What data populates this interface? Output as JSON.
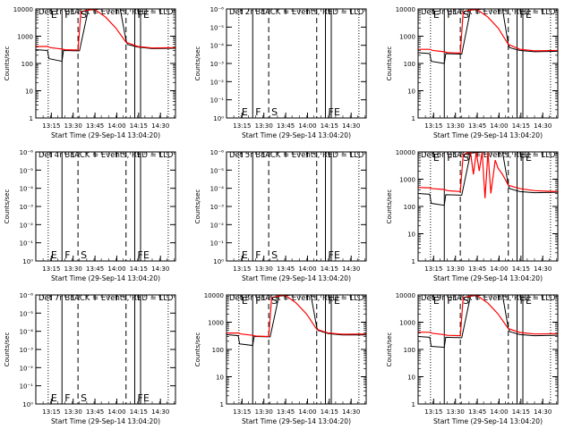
{
  "chart_data": {
    "type": "line",
    "layout": "3x3 grid",
    "ylabel": "Counts/sec",
    "xlabel": "Start Time (29-Sep-14 13:04:20)",
    "x_ticks": [
      "13:15",
      "13:30",
      "13:45",
      "14:00",
      "14:15",
      "14:30"
    ],
    "x_tick_minutes": [
      10.67,
      25.67,
      40.67,
      55.67,
      70.67,
      85.67
    ],
    "xlim_minutes": [
      0,
      96
    ],
    "ylim": [
      1,
      10000
    ],
    "y_scale": "log",
    "y_ticks_real": [
      "1",
      "10",
      "100",
      "1000",
      "10000"
    ],
    "y_ticks_empty": [
      "10⁰",
      "10⁻¹",
      "10⁻²",
      "10⁻³",
      "10⁻⁴",
      "10⁻⁵",
      "10⁻⁶"
    ],
    "series_colors": {
      "events": "#000000",
      "lld": "#ff0000"
    },
    "markers": [
      {
        "minutes": 8.5,
        "style": "dotted",
        "label": "E"
      },
      {
        "minutes": 18,
        "style": "solid",
        "label": "F"
      },
      {
        "minutes": 29,
        "style": "dashed",
        "label": "S"
      },
      {
        "minutes": 62,
        "style": "dashed",
        "label": ""
      },
      {
        "minutes": 68,
        "style": "solid",
        "label": "F"
      },
      {
        "minutes": 72,
        "style": "solid",
        "label": "E"
      },
      {
        "minutes": 91,
        "style": "dotted",
        "label": ""
      }
    ],
    "panels": [
      {
        "title": "Det 1r BLACK = Events, RED = LLD",
        "empty": false,
        "events_x": [
          0,
          8,
          9,
          18,
          19,
          29,
          30,
          36,
          45,
          50,
          58,
          62,
          63,
          70,
          80,
          96
        ],
        "events_y": [
          320,
          300,
          150,
          120,
          300,
          290,
          290,
          9000,
          10000,
          10000,
          10000,
          700,
          500,
          400,
          350,
          360
        ],
        "lld_x": [
          0,
          8,
          10,
          18,
          20,
          29,
          31,
          40,
          48,
          55,
          62,
          70,
          80,
          96
        ],
        "lld_y": [
          420,
          420,
          380,
          340,
          320,
          310,
          8000,
          10000,
          5000,
          2000,
          600,
          420,
          370,
          380
        ]
      },
      {
        "title": "Det 2r BLACK = Events, RED = LLD",
        "empty": true
      },
      {
        "title": "Det 3r BLACK = Events, RED = LLD",
        "empty": false,
        "events_x": [
          0,
          8,
          9,
          18,
          19,
          29,
          30,
          36,
          45,
          50,
          58,
          62,
          63,
          70,
          80,
          96
        ],
        "events_y": [
          250,
          230,
          120,
          100,
          230,
          220,
          220,
          9000,
          10000,
          10000,
          10000,
          500,
          380,
          300,
          270,
          280
        ],
        "lld_x": [
          0,
          8,
          10,
          18,
          20,
          29,
          31,
          40,
          48,
          55,
          62,
          70,
          80,
          96
        ],
        "lld_y": [
          330,
          330,
          300,
          270,
          250,
          240,
          8000,
          10000,
          5000,
          2000,
          500,
          330,
          290,
          300
        ]
      },
      {
        "title": "Det 4r BLACK = Events, RED = LLD",
        "empty": true
      },
      {
        "title": "Det 5r BLACK = Events, RED = LLD",
        "empty": true
      },
      {
        "title": "Det 6r BLACK = Events, RED = LLD",
        "empty": false,
        "events_x": [
          0,
          8,
          9,
          18,
          19,
          29,
          30,
          36,
          45,
          50,
          58,
          62,
          63,
          70,
          80,
          96
        ],
        "events_y": [
          300,
          280,
          130,
          110,
          270,
          260,
          260,
          9000,
          10000,
          10000,
          10000,
          600,
          450,
          350,
          320,
          330
        ],
        "lld_x": [
          0,
          8,
          10,
          18,
          20,
          29,
          31,
          36,
          38,
          40,
          42,
          44,
          46,
          48,
          50,
          53,
          55,
          58,
          62,
          70,
          80,
          96
        ],
        "lld_y": [
          500,
          480,
          450,
          420,
          380,
          350,
          8000,
          10000,
          1500,
          10000,
          2000,
          10000,
          200,
          10000,
          300,
          5000,
          2500,
          1500,
          600,
          450,
          380,
          350
        ]
      },
      {
        "title": "Det 7r BLACK = Events, RED = LLD",
        "empty": true
      },
      {
        "title": "Det 8r BLACK = Events, RED = LLD",
        "empty": false,
        "events_x": [
          0,
          8,
          9,
          18,
          19,
          29,
          30,
          36,
          45,
          50,
          58,
          62,
          63,
          70,
          80,
          96
        ],
        "events_y": [
          350,
          320,
          160,
          140,
          300,
          290,
          290,
          9000,
          10000,
          10000,
          10000,
          650,
          500,
          380,
          340,
          340
        ],
        "lld_x": [
          0,
          8,
          10,
          18,
          20,
          29,
          31,
          40,
          48,
          55,
          62,
          70,
          80,
          96
        ],
        "lld_y": [
          400,
          400,
          370,
          330,
          310,
          300,
          8000,
          10000,
          5000,
          2000,
          550,
          400,
          360,
          370
        ]
      },
      {
        "title": "Det 9r BLACK = Events, RED = LLD",
        "empty": false,
        "events_x": [
          0,
          8,
          9,
          18,
          19,
          29,
          30,
          36,
          45,
          50,
          58,
          62,
          63,
          70,
          80,
          96
        ],
        "events_y": [
          300,
          280,
          130,
          120,
          280,
          270,
          270,
          9000,
          10000,
          10000,
          10000,
          600,
          450,
          350,
          320,
          330
        ],
        "lld_x": [
          0,
          8,
          10,
          18,
          20,
          29,
          31,
          40,
          48,
          55,
          62,
          70,
          80,
          96
        ],
        "lld_y": [
          430,
          430,
          390,
          350,
          330,
          320,
          8000,
          10000,
          5000,
          2000,
          580,
          420,
          370,
          380
        ]
      }
    ]
  }
}
